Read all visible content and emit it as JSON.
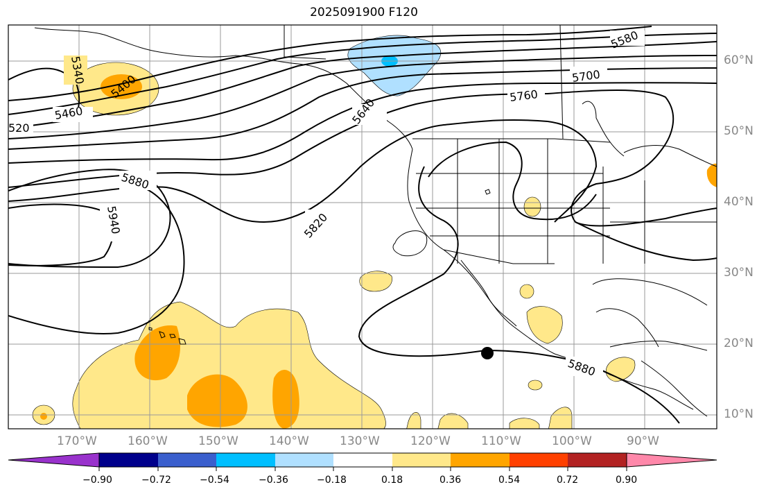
{
  "title": "2025091900 F120",
  "lat_labels": [
    "60°N",
    "50°N",
    "40°N",
    "30°N",
    "20°N",
    "10°N"
  ],
  "lon_labels": [
    "170°W",
    "160°W",
    "150°W",
    "140°W",
    "130°W",
    "120°W",
    "110°W",
    "100°W",
    "90°W"
  ],
  "contour_labels": [
    "5340",
    "5400",
    "5460",
    "520",
    "5580",
    "5640",
    "5700",
    "5760",
    "5820",
    "5880",
    "5880",
    "5940"
  ],
  "colorbar": {
    "tick_labels": [
      "−0.90",
      "−0.72",
      "−0.54",
      "−0.36",
      "−0.18",
      "0.18",
      "0.36",
      "0.54",
      "0.72",
      "0.90"
    ],
    "colors": [
      "#9932cc",
      "#00008b",
      "#3a5fcd",
      "#00bfff",
      "#b0e0ff",
      "#ffffff",
      "#ffe88a",
      "#ffa500",
      "#ff4000",
      "#b22222",
      "#ff88aa"
    ]
  },
  "fill_colors": {
    "light_yellow": "#ffe88a",
    "orange": "#ffa500",
    "light_blue": "#b0e0ff",
    "deep_sky": "#00bfff"
  }
}
